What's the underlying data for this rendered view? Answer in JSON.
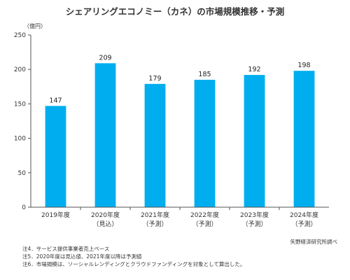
{
  "chart_data": {
    "type": "bar",
    "title": "シェアリングエコノミー（カネ）の市場規模推移・予測",
    "unit_label": "（億円）",
    "categories": [
      "2019年度",
      "2020年度",
      "2021年度",
      "2022年度",
      "2023年度",
      "2024年度"
    ],
    "sublabels": [
      "",
      "（見込）",
      "（予測）",
      "（予測）",
      "（予測）",
      "（予測）"
    ],
    "values": [
      147,
      209,
      179,
      185,
      192,
      198
    ],
    "ylim": [
      0,
      250
    ],
    "yticks": [
      0,
      50,
      100,
      150,
      200,
      250
    ],
    "grid": false,
    "bar_color": "#00AEEF"
  },
  "source": "矢野経済研究所調べ",
  "notes": [
    "注4．サービス提供事業者売上ベース",
    "注5．2020年度は見込値、2021年度以降は予測値",
    "注6．市場規模は、ソーシャルレンディングとクラウドファンディングを対象として算出した。"
  ]
}
